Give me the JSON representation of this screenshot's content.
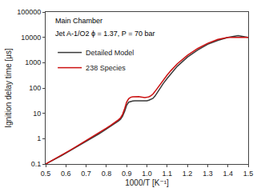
{
  "chart_data": {
    "type": "line",
    "annotations": [
      "Main Chamber",
      "Jet A-1/O2 ϕ = 1.37, P = 70 bar"
    ],
    "xlabel": "1000/T [K⁻¹]",
    "ylabel": "Ignition delay time [μs]",
    "x": [
      0.5,
      0.52,
      0.54,
      0.56,
      0.58,
      0.6,
      0.62,
      0.64,
      0.66,
      0.68,
      0.7,
      0.72,
      0.74,
      0.76,
      0.78,
      0.8,
      0.82,
      0.84,
      0.86,
      0.87,
      0.88,
      0.89,
      0.9,
      0.91,
      0.92,
      0.93,
      0.94,
      0.95,
      0.96,
      0.97,
      0.98,
      0.99,
      1.0,
      1.01,
      1.02,
      1.03,
      1.04,
      1.05,
      1.06,
      1.08,
      1.1,
      1.12,
      1.15,
      1.2,
      1.25,
      1.3,
      1.35,
      1.4,
      1.45,
      1.5
    ],
    "series": [
      {
        "name": "Detailed Model",
        "color": "#3a3a3a",
        "values": [
          0.1,
          0.12,
          0.145,
          0.178,
          0.218,
          0.268,
          0.33,
          0.408,
          0.505,
          0.625,
          0.775,
          0.965,
          1.2,
          1.5,
          1.88,
          2.38,
          3.02,
          3.85,
          5.0,
          5.9,
          7.8,
          12.0,
          21.0,
          27.5,
          29.5,
          30.5,
          31.0,
          31.5,
          31.5,
          31.5,
          31.0,
          31.0,
          31.5,
          33.0,
          35.0,
          39.0,
          48.0,
          64.0,
          84.0,
          148.0,
          240.0,
          385.0,
          720.0,
          1650.0,
          3150.0,
          5300.0,
          7600.0,
          9900.0,
          11600.0,
          10000.0
        ]
      },
      {
        "name": "238 Species",
        "color": "#cc1111",
        "values": [
          0.1,
          0.122,
          0.15,
          0.183,
          0.226,
          0.28,
          0.348,
          0.432,
          0.537,
          0.668,
          0.832,
          1.04,
          1.29,
          1.62,
          2.05,
          2.6,
          3.32,
          4.25,
          5.6,
          6.7,
          9.2,
          15.5,
          28.0,
          38.0,
          43.0,
          45.0,
          45.5,
          46.0,
          45.5,
          44.5,
          43.0,
          42.0,
          43.0,
          45.0,
          50.0,
          58.0,
          73.0,
          95.0,
          122.0,
          205.0,
          325.0,
          500.0,
          900.0,
          1950.0,
          3600.0,
          5800.0,
          8300.0,
          10000.0,
          10000.0,
          10000.0
        ]
      }
    ],
    "xlim": [
      0.5,
      1.5
    ],
    "xticks": [
      0.5,
      0.6,
      0.7,
      0.8,
      0.9,
      {
        "value": 1.0,
        "label": "1.0"
      },
      1.1,
      1.2,
      1.3,
      1.4,
      1.5
    ],
    "ylim": [
      0.1,
      100000
    ],
    "yticks": [
      0.1,
      1,
      10,
      100,
      1000,
      10000,
      100000
    ],
    "log": "y",
    "grid": false,
    "legend": "upper left"
  }
}
